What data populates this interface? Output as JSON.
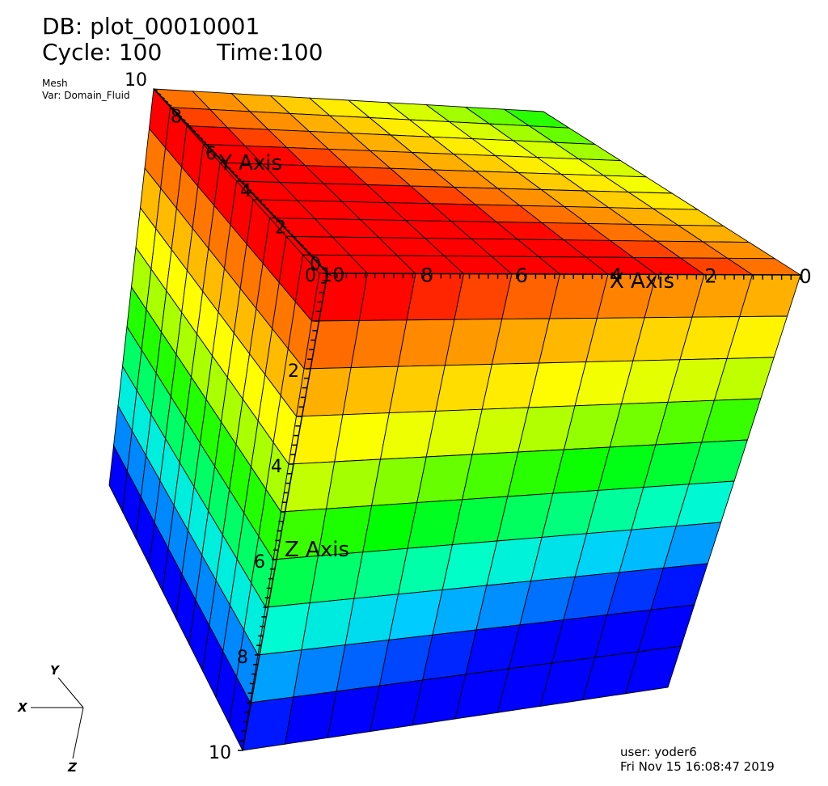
{
  "header": {
    "db_label": "DB: plot_00010001",
    "cycle_label": "Cycle: 100",
    "time_label": "Time:100"
  },
  "plot_info": {
    "plot_type": "Mesh",
    "variable": "Var: Domain_Fluid"
  },
  "axes": {
    "x_title": "X Axis",
    "y_title": "Y Axis",
    "z_title": "Z Axis",
    "x_ticks": [
      "10",
      "8",
      "6",
      "4",
      "2",
      "0"
    ],
    "y_ticks": [
      "0",
      "2",
      "4",
      "6",
      "8",
      "10"
    ],
    "z_ticks": [
      "0",
      "2",
      "4",
      "6",
      "8",
      "10"
    ]
  },
  "triad": {
    "x": "X",
    "y": "Y",
    "z": "Z"
  },
  "footer": {
    "user": "user: yoder6",
    "datetime": "Fri Nov 15 16:08:47 2019"
  },
  "colors": {
    "background": "#ffffff",
    "colormap": [
      "#0000ff",
      "#0066ff",
      "#00ccff",
      "#00ffcc",
      "#00ff66",
      "#00ff00",
      "#66ff00",
      "#ccff00",
      "#ffff00",
      "#ffcc00",
      "#ff9900",
      "#ff6600",
      "#ff0000"
    ]
  }
}
